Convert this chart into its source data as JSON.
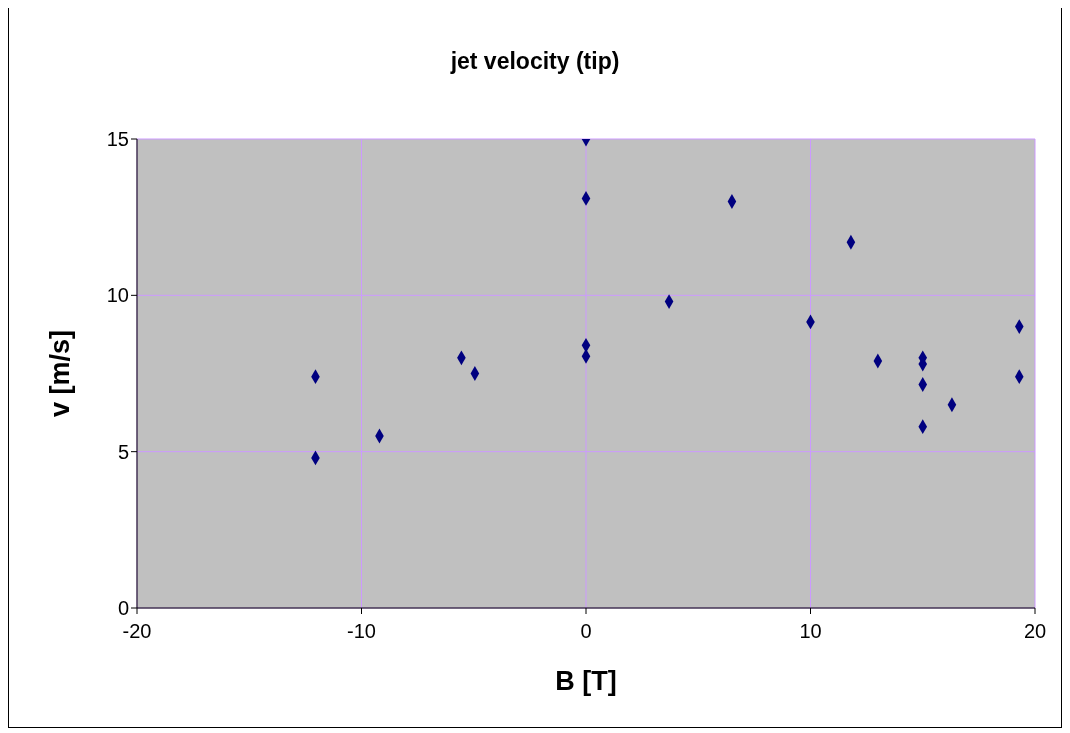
{
  "chart_data": {
    "type": "scatter",
    "title": "jet velocity (tip)",
    "xlabel": "B [T]",
    "ylabel": "v [m/s]",
    "x": [
      -12.05,
      -12.05,
      -9.2,
      -5.55,
      -4.95,
      0,
      0,
      0,
      0,
      3.7,
      6.5,
      11.8,
      10,
      13,
      15,
      15,
      15,
      15,
      16.3,
      19.3,
      19.3
    ],
    "series": [
      {
        "color": "#000080",
        "values": [
          7.4,
          4.8,
          5.5,
          8.0,
          7.5,
          15.0,
          13.1,
          8.4,
          8.05,
          9.8,
          13.0,
          11.7,
          9.15,
          7.9,
          8.0,
          7.8,
          7.15,
          5.8,
          6.5,
          9.0,
          7.4
        ]
      }
    ],
    "xlim": [
      -20,
      20
    ],
    "xticks": [
      -20,
      -10,
      0,
      10,
      20
    ],
    "ylim": [
      0,
      15
    ],
    "yticks": [
      0,
      5,
      10,
      15
    ],
    "grid": true,
    "marker": "diamond"
  }
}
